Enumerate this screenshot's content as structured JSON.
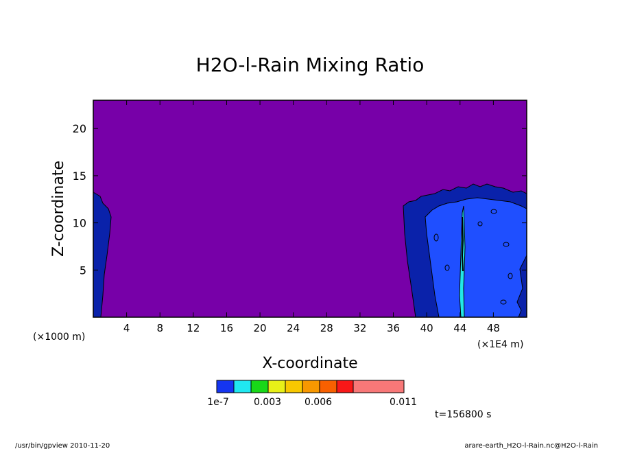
{
  "chart_data": {
    "type": "heatmap",
    "title": "H2O-l-Rain Mixing Ratio",
    "xlabel": "X-coordinate",
    "ylabel": "Z-coordinate",
    "x_unit_left": "(×1000 m)",
    "x_unit_right": "(×1E4 m)",
    "xlim": [
      0,
      52
    ],
    "ylim": [
      0,
      23
    ],
    "x_ticks": [
      4,
      8,
      12,
      16,
      20,
      24,
      28,
      32,
      36,
      40,
      44,
      48
    ],
    "x_tick_labels": [
      "4",
      "8",
      "12",
      "16",
      "20",
      "24",
      "28",
      "32",
      "36",
      "40",
      "44",
      "48"
    ],
    "y_ticks": [
      5,
      10,
      15,
      20
    ],
    "y_tick_labels": [
      "5",
      "10",
      "15",
      "20"
    ],
    "background_color": "#7700A8",
    "regions": [
      {
        "level": "1e-7",
        "color": "#0A22AA",
        "description": "rain region left edge",
        "x_range": [
          0,
          2
        ],
        "z_range": [
          0,
          13
        ]
      },
      {
        "level": "1e-7",
        "color": "#0A22AA",
        "description": "rain region right",
        "x_range": [
          37,
          52
        ],
        "z_range": [
          0,
          14
        ]
      },
      {
        "level": "0.0015",
        "color": "#1F4FFF",
        "x_range": [
          39,
          52
        ],
        "z_range": [
          0,
          12
        ]
      },
      {
        "level": "0.003",
        "color": "#22E8E8",
        "x_range": [
          43,
          44
        ],
        "z_range": [
          0,
          11
        ]
      }
    ],
    "colorbar": {
      "colors": [
        "#1535F0",
        "#20E8F0",
        "#18D818",
        "#E8F018",
        "#F8C800",
        "#F89800",
        "#F86000",
        "#F81818",
        "#F87878"
      ],
      "labels": [
        "1e-7",
        "0.003",
        "0.006",
        "0.011"
      ]
    },
    "time_label": "t=156800 s"
  },
  "footer": {
    "left": "/usr/bin/gpview  2010-11-20",
    "right": "arare-earth_H2O-l-Rain.nc@H2O-l-Rain"
  }
}
